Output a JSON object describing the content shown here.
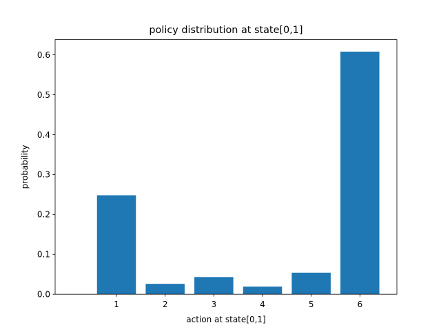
{
  "chart_data": {
    "type": "bar",
    "title": "policy distribution at state[0,1]",
    "xlabel": "action at state[0,1]",
    "ylabel": "probability",
    "categories": [
      "1",
      "2",
      "3",
      "4",
      "5",
      "6"
    ],
    "values": [
      0.248,
      0.026,
      0.043,
      0.019,
      0.054,
      0.608
    ],
    "ylim": [
      0,
      0.638
    ],
    "yticks": [
      0.0,
      0.1,
      0.2,
      0.3,
      0.4,
      0.5,
      0.6
    ],
    "ytick_labels": [
      "0.0",
      "0.1",
      "0.2",
      "0.3",
      "0.4",
      "0.5",
      "0.6"
    ],
    "bar_color": "#1f77b4",
    "grid": false,
    "legend": "none"
  }
}
